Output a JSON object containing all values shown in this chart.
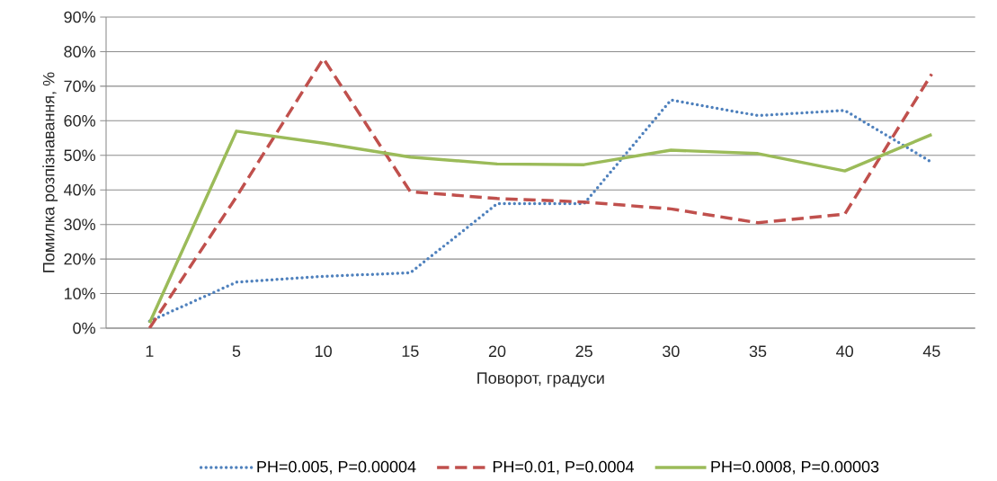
{
  "chart_data": {
    "type": "line",
    "xlabel": "Поворот, градуси",
    "ylabel": "Помилка розпізнавання, %",
    "categories": [
      "1",
      "5",
      "10",
      "15",
      "20",
      "25",
      "30",
      "35",
      "40",
      "45"
    ],
    "series": [
      {
        "name": "PH=0.005, P=0.00004",
        "color": "#4f81bd",
        "line_style": "dotted",
        "values": [
          2,
          13.3,
          15,
          16,
          36,
          36,
          66,
          61.5,
          63,
          48
        ]
      },
      {
        "name": "PH=0.01, P=0.0004",
        "color": "#c0504d",
        "line_style": "dashed",
        "values": [
          0,
          38,
          78,
          39.5,
          37.5,
          36.5,
          34.5,
          30.5,
          33,
          73.5
        ]
      },
      {
        "name": "PH=0.0008, P=0.00003",
        "color": "#9bbb59",
        "line_style": "solid",
        "values": [
          1.5,
          57,
          53.5,
          49.5,
          47.5,
          47.3,
          51.5,
          50.5,
          45.5,
          56
        ]
      }
    ],
    "ylim": [
      0,
      90
    ],
    "yticks": [
      {
        "value": 0,
        "label": "0%"
      },
      {
        "value": 10,
        "label": "10%"
      },
      {
        "value": 20,
        "label": "20%"
      },
      {
        "value": 30,
        "label": "30%"
      },
      {
        "value": 40,
        "label": "40%"
      },
      {
        "value": 50,
        "label": "50%"
      },
      {
        "value": 60,
        "label": "60%"
      },
      {
        "value": 70,
        "label": "70%"
      },
      {
        "value": 80,
        "label": "80%"
      },
      {
        "value": 90,
        "label": "90%"
      }
    ],
    "grid": "y",
    "legend": "bottom",
    "marker": "none"
  }
}
